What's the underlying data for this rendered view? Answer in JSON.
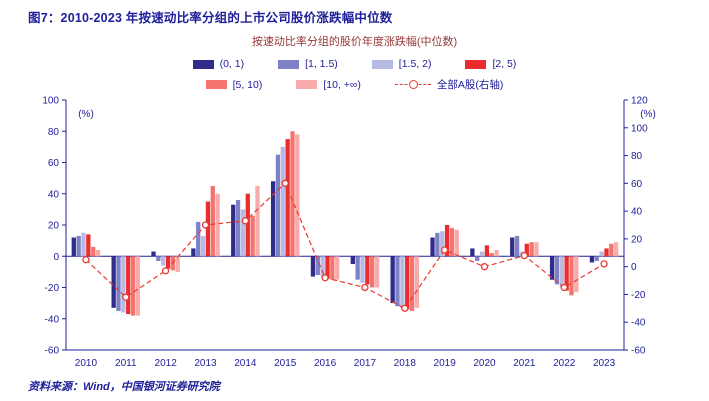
{
  "header": {
    "title": "图7：2010-2023 年按速动比率分组的上市公司股价涨跌幅中位数"
  },
  "subtitle": "按速动比率分组的股价年度涨跌幅(中位数)",
  "footer": {
    "source": "资料来源：Wind，中国银河证券研究院"
  },
  "colors": {
    "navy_text": "#20209b",
    "subtitle_red": "#953735",
    "axis": "#20209b",
    "line_red": "#e93a2f"
  },
  "chart_data": {
    "type": "bar",
    "title": "按速动比率分组的股价年度涨跌幅(中位数)",
    "categories": [
      "2010",
      "2011",
      "2012",
      "2013",
      "2014",
      "2015",
      "2016",
      "2017",
      "2018",
      "2019",
      "2020",
      "2021",
      "2022",
      "2023"
    ],
    "series": [
      {
        "name": "(0, 1)",
        "color": "#2f2c8c",
        "values": [
          12,
          -33,
          3,
          5,
          33,
          48,
          -13,
          -5,
          -30,
          12,
          5,
          12,
          -15,
          -4
        ]
      },
      {
        "name": "[1, 1.5)",
        "color": "#7e81c6",
        "values": [
          13,
          -35,
          -3,
          22,
          36,
          65,
          -12,
          -15,
          -32,
          15,
          -3,
          13,
          -18,
          -3
        ]
      },
      {
        "name": "[1.5, 2)",
        "color": "#b7bae2",
        "values": [
          15,
          -36,
          -6,
          13,
          30,
          70,
          -13,
          -17,
          -33,
          16,
          3,
          3,
          -20,
          3
        ]
      },
      {
        "name": "[2, 5)",
        "color": "#ea2d2c",
        "values": [
          14,
          -37,
          -8,
          35,
          40,
          75,
          -14,
          -18,
          -34,
          20,
          7,
          8,
          -22,
          5
        ]
      },
      {
        "name": "[5, 10)",
        "color": "#f4736f",
        "values": [
          6,
          -38,
          -9,
          45,
          26,
          80,
          -15,
          -20,
          -35,
          18,
          2,
          9,
          -25,
          8
        ]
      },
      {
        "name": "[10, +∞)",
        "color": "#f8abaa",
        "values": [
          4,
          -38,
          -10,
          40,
          45,
          78,
          -15,
          -20,
          -33,
          17,
          4,
          9,
          -23,
          9
        ]
      }
    ],
    "line_series": {
      "name": "全部A股(右轴)",
      "color": "#e93a2f",
      "axis": "right",
      "values": [
        5,
        -22,
        -3,
        30,
        33,
        60,
        -8,
        -15,
        -30,
        12,
        0,
        8,
        -15,
        2
      ]
    },
    "left_axis": {
      "label": "(%)",
      "min": -60,
      "max": 100,
      "step": 20
    },
    "right_axis": {
      "label": "(%)",
      "min": -60,
      "max": 120,
      "step": 20
    },
    "grid": false,
    "legend_position": "top"
  }
}
